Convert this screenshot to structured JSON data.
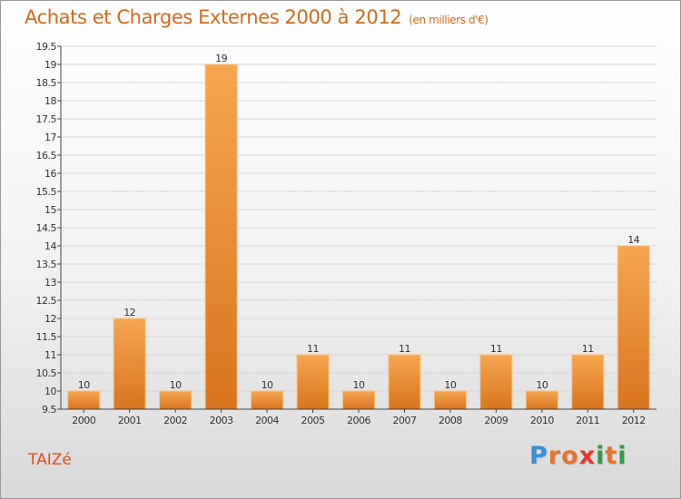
{
  "title": "Achats et Charges Externes 2000 à 2012",
  "unit_note": "(en milliers d'€)",
  "commune": "TAIZé",
  "logo": {
    "text": "Proxiti",
    "letters": [
      {
        "ch": "P",
        "color": "#3a8fd8"
      },
      {
        "ch": "r",
        "color": "#e8732a"
      },
      {
        "ch": "o",
        "color": "#e8732a"
      },
      {
        "ch": "x",
        "color": "#e23b2e"
      },
      {
        "ch": "i",
        "color": "#2f9e44"
      },
      {
        "ch": "t",
        "color": "#e8732a"
      },
      {
        "ch": "i",
        "color": "#2f9e44"
      }
    ]
  },
  "colors": {
    "bar_light": "#f7a650",
    "bar_dark": "#d9741e",
    "bar_edge": "#fbc07d",
    "axis": "#444444",
    "grid": "#d8d8d8"
  },
  "chart_data": {
    "type": "bar",
    "categories": [
      "2000",
      "2001",
      "2002",
      "2003",
      "2004",
      "2005",
      "2006",
      "2007",
      "2008",
      "2009",
      "2010",
      "2011",
      "2012"
    ],
    "values": [
      10,
      12,
      10,
      19,
      10,
      11,
      10,
      11,
      10,
      11,
      10,
      11,
      14
    ],
    "ylim": [
      9.5,
      19.5
    ],
    "yticks": [
      9.5,
      10,
      10.5,
      11,
      11.5,
      12,
      12.5,
      13,
      13.5,
      14,
      14.5,
      15,
      15.5,
      16,
      16.5,
      17,
      17.5,
      18,
      18.5,
      19,
      19.5
    ],
    "grid": true
  }
}
